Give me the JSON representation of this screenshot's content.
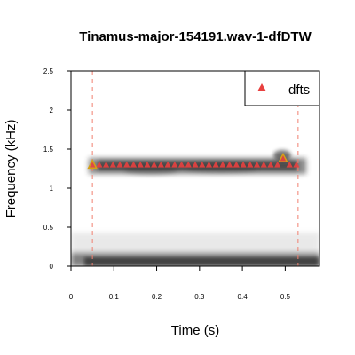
{
  "chart_data": {
    "type": "scatter",
    "title": "Tinamus-major-154191.wav-1-dfDTW",
    "xlabel": "Time (s)",
    "ylabel": "Frequency (kHz)",
    "xlim": [
      0,
      0.58
    ],
    "ylim": [
      0,
      2.5
    ],
    "x_ticks": [
      "0",
      "0.1",
      "0.2",
      "0.3",
      "0.4",
      "0.5"
    ],
    "y_ticks": [
      "0",
      "0.5",
      "1",
      "1.5",
      "2",
      "2.5"
    ],
    "legend": {
      "position": "top-right",
      "label": "dfts"
    },
    "boundaries": [
      0.05,
      0.53
    ],
    "endpoints": [
      {
        "x": 0.05,
        "y": 1.3
      },
      {
        "x": 0.495,
        "y": 1.38
      }
    ],
    "series": [
      {
        "name": "dfts",
        "marker": "triangle",
        "color": "#e8403f",
        "points": [
          {
            "x": 0.05,
            "y": 1.3
          },
          {
            "x": 0.066,
            "y": 1.3
          },
          {
            "x": 0.082,
            "y": 1.3
          },
          {
            "x": 0.098,
            "y": 1.3
          },
          {
            "x": 0.114,
            "y": 1.3
          },
          {
            "x": 0.13,
            "y": 1.3
          },
          {
            "x": 0.146,
            "y": 1.3
          },
          {
            "x": 0.162,
            "y": 1.3
          },
          {
            "x": 0.178,
            "y": 1.3
          },
          {
            "x": 0.194,
            "y": 1.3
          },
          {
            "x": 0.21,
            "y": 1.3
          },
          {
            "x": 0.226,
            "y": 1.3
          },
          {
            "x": 0.242,
            "y": 1.3
          },
          {
            "x": 0.258,
            "y": 1.3
          },
          {
            "x": 0.274,
            "y": 1.3
          },
          {
            "x": 0.29,
            "y": 1.3
          },
          {
            "x": 0.306,
            "y": 1.3
          },
          {
            "x": 0.322,
            "y": 1.3
          },
          {
            "x": 0.338,
            "y": 1.3
          },
          {
            "x": 0.354,
            "y": 1.3
          },
          {
            "x": 0.37,
            "y": 1.3
          },
          {
            "x": 0.386,
            "y": 1.3
          },
          {
            "x": 0.402,
            "y": 1.3
          },
          {
            "x": 0.418,
            "y": 1.3
          },
          {
            "x": 0.434,
            "y": 1.3
          },
          {
            "x": 0.45,
            "y": 1.3
          },
          {
            "x": 0.466,
            "y": 1.3
          },
          {
            "x": 0.482,
            "y": 1.3
          },
          {
            "x": 0.495,
            "y": 1.38
          },
          {
            "x": 0.51,
            "y": 1.3
          },
          {
            "x": 0.526,
            "y": 1.3
          }
        ]
      }
    ]
  }
}
